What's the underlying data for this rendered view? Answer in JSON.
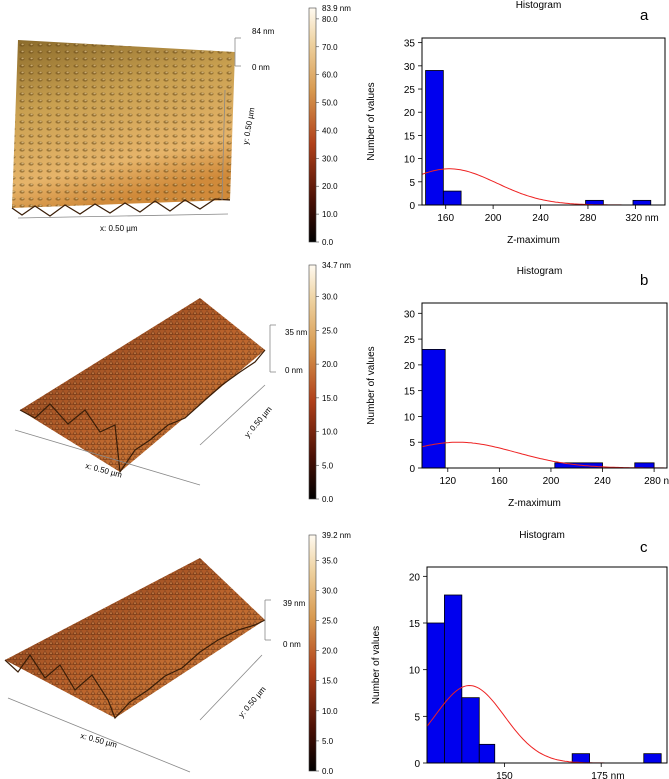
{
  "panels": [
    {
      "letter": "a",
      "afm": {
        "height_top": "84 nm",
        "height_bottom": "0 nm",
        "x_label": "x: 0.50 µm",
        "y_label": "y: 0.50 µm",
        "colorbar_max": "83.9 nm",
        "colorbar_ticks": [
          "80.0",
          "70.0",
          "60.0",
          "50.0",
          "40.0",
          "30.0",
          "20.0",
          "10.0",
          "0.0"
        ]
      }
    },
    {
      "letter": "b",
      "afm": {
        "height_top": "35 nm",
        "height_bottom": "0 nm",
        "x_label": "x: 0.50 µm",
        "y_label": "y: 0.50 µm",
        "colorbar_max": "34.7 nm",
        "colorbar_ticks": [
          "30.0",
          "25.0",
          "20.0",
          "15.0",
          "10.0",
          "5.0",
          "0.0"
        ]
      }
    },
    {
      "letter": "c",
      "afm": {
        "height_top": "39 nm",
        "height_bottom": "0 nm",
        "x_label": "x: 0.50 µm",
        "y_label": "y: 0.50 µm",
        "colorbar_max": "39.2 nm",
        "colorbar_ticks": [
          "35.0",
          "30.0",
          "25.0",
          "20.0",
          "15.0",
          "10.0",
          "5.0",
          "0.0"
        ]
      }
    }
  ],
  "chart_data": [
    {
      "type": "bar",
      "title": "Histogram",
      "xlabel": "Z-maximum",
      "ylabel": "Number of values",
      "x_tick_labels": [
        "160",
        "200",
        "240",
        "280",
        "320 nm"
      ],
      "x_ticks": [
        160,
        200,
        240,
        280,
        320
      ],
      "xlim": [
        140,
        345
      ],
      "ylim": [
        0,
        36
      ],
      "y_ticks": [
        0,
        5,
        10,
        15,
        20,
        25,
        30,
        35
      ],
      "bins": [
        {
          "x0": 143,
          "x1": 158,
          "count": 29
        },
        {
          "x0": 158,
          "x1": 173,
          "count": 3
        },
        {
          "x0": 278,
          "x1": 293,
          "count": 1
        },
        {
          "x0": 318,
          "x1": 333,
          "count": 1
        }
      ],
      "fit_curve": {
        "mean": 163,
        "sd": 40,
        "peak": 7.8
      },
      "colors": {
        "bar": "#0000ee",
        "fit": "#ee2222"
      }
    },
    {
      "type": "bar",
      "title": "Histogram",
      "xlabel": "Z-maximum",
      "ylabel": "Number of values",
      "x_tick_labels": [
        "120",
        "160",
        "200",
        "240",
        "280 nm"
      ],
      "x_ticks": [
        120,
        160,
        200,
        240,
        280
      ],
      "xlim": [
        100,
        290
      ],
      "ylim": [
        0,
        32
      ],
      "y_ticks": [
        0,
        5,
        10,
        15,
        20,
        25,
        30
      ],
      "bins": [
        {
          "x0": 100,
          "x1": 118,
          "count": 23
        },
        {
          "x0": 203,
          "x1": 240,
          "count": 1
        },
        {
          "x0": 265,
          "x1": 280,
          "count": 1
        }
      ],
      "fit_curve": {
        "mean": 128,
        "sd": 45,
        "peak": 5.0
      },
      "colors": {
        "bar": "#0000ee",
        "fit": "#ee2222"
      }
    },
    {
      "type": "bar",
      "title": "Histogram",
      "xlabel": "Z-maximum",
      "ylabel": "Number of values",
      "x_tick_labels": [
        "150",
        "175 nm"
      ],
      "x_ticks": [
        150,
        175
      ],
      "xlim": [
        130,
        192
      ],
      "ylim": [
        0,
        21
      ],
      "y_ticks": [
        0,
        5,
        10,
        15,
        20
      ],
      "bins": [
        {
          "x0": 130,
          "x1": 134.5,
          "count": 15
        },
        {
          "x0": 134.5,
          "x1": 139,
          "count": 18
        },
        {
          "x0": 139,
          "x1": 143.5,
          "count": 7
        },
        {
          "x0": 143.5,
          "x1": 147.5,
          "count": 2
        },
        {
          "x0": 167.5,
          "x1": 172,
          "count": 1
        },
        {
          "x0": 186,
          "x1": 190.5,
          "count": 1
        }
      ],
      "fit_curve": {
        "mean": 141,
        "sd": 9,
        "peak": 8.3
      },
      "colors": {
        "bar": "#0000ee",
        "fit": "#ee2222"
      }
    }
  ]
}
